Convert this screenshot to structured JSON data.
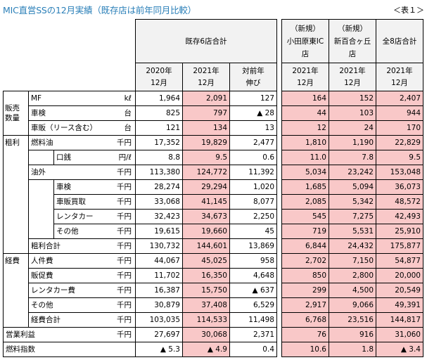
{
  "title": "MIC直営SSの12月実績（既存店は前年同月比較）",
  "tag": "＜表１＞",
  "headers": {
    "existing_group": "既存6店合計",
    "y2020": "2020年",
    "y2021": "2021年",
    "m12": "12月",
    "yoy1": "対前年",
    "yoy2": "伸び",
    "new1_a": "（新規）",
    "new1_b": "小田原東IC",
    "new1_c": "店",
    "new2_a": "（新規）",
    "new2_b": "新百合ヶ丘",
    "new2_c": "店",
    "all8": "全8店合計"
  },
  "groups": {
    "sales_qty_1": "販売",
    "sales_qty_2": "数量",
    "gross": "粗利",
    "expense": "経費",
    "op_profit": "営業利益",
    "fuel_index": "燃料指数"
  },
  "rows": {
    "mf": {
      "label": "MF",
      "unit": "kℓ",
      "v2020": "1,964",
      "v2021": "2,091",
      "yoy": "127",
      "odawara": "164",
      "shinyuri": "152",
      "total": "2,407"
    },
    "shaken": {
      "label": "車検",
      "unit": "台",
      "v2020": "825",
      "v2021": "797",
      "yoy": "▲ 28",
      "odawara": "44",
      "shinyuri": "103",
      "total": "944"
    },
    "shahan": {
      "label": "車販（リース含む）",
      "unit": "台",
      "v2020": "121",
      "v2021": "134",
      "yoy": "13",
      "odawara": "12",
      "shinyuri": "24",
      "total": "170"
    },
    "fuel": {
      "label": "燃料油",
      "unit": "千円",
      "v2020": "17,352",
      "v2021": "19,829",
      "yoy": "2,477",
      "odawara": "1,810",
      "shinyuri": "1,190",
      "total": "22,829"
    },
    "margin": {
      "label": "口銭",
      "unit": "円/ℓ",
      "v2020": "8.8",
      "v2021": "9.5",
      "yoy": "0.6",
      "odawara": "11.0",
      "shinyuri": "7.8",
      "total": "9.5"
    },
    "oilout": {
      "label": "油外",
      "unit": "千円",
      "v2020": "113,380",
      "v2021": "124,772",
      "yoy": "11,392",
      "odawara": "5,034",
      "shinyuri": "23,242",
      "total": "153,048"
    },
    "o_shaken": {
      "label": "車検",
      "unit": "千円",
      "v2020": "28,274",
      "v2021": "29,294",
      "yoy": "1,020",
      "odawara": "1,685",
      "shinyuri": "5,094",
      "total": "36,073"
    },
    "o_buy": {
      "label": "車販買取",
      "unit": "千円",
      "v2020": "33,068",
      "v2021": "41,145",
      "yoy": "8,077",
      "odawara": "2,085",
      "shinyuri": "5,342",
      "total": "48,572"
    },
    "o_rent": {
      "label": "レンタカー",
      "unit": "千円",
      "v2020": "32,423",
      "v2021": "34,673",
      "yoy": "2,250",
      "odawara": "545",
      "shinyuri": "7,275",
      "total": "42,493"
    },
    "o_other": {
      "label": "その他",
      "unit": "千円",
      "v2020": "19,615",
      "v2021": "19,660",
      "yoy": "45",
      "odawara": "719",
      "shinyuri": "5,531",
      "total": "25,910"
    },
    "gross_sum": {
      "label": "粗利合計",
      "unit": "千円",
      "v2020": "130,732",
      "v2021": "144,601",
      "yoy": "13,869",
      "odawara": "6,844",
      "shinyuri": "24,432",
      "total": "175,877"
    },
    "e_person": {
      "label": "人件費",
      "unit": "千円",
      "v2020": "44,067",
      "v2021": "45,025",
      "yoy": "958",
      "odawara": "2,702",
      "shinyuri": "7,150",
      "total": "54,877"
    },
    "e_promo": {
      "label": "販促費",
      "unit": "千円",
      "v2020": "11,702",
      "v2021": "16,350",
      "yoy": "4,648",
      "odawara": "850",
      "shinyuri": "2,800",
      "total": "20,000"
    },
    "e_rent": {
      "label": "レンタカー費",
      "unit": "千円",
      "v2020": "16,387",
      "v2021": "15,750",
      "yoy": "▲ 637",
      "odawara": "299",
      "shinyuri": "4,500",
      "total": "20,549"
    },
    "e_other": {
      "label": "その他",
      "unit": "千円",
      "v2020": "30,879",
      "v2021": "37,408",
      "yoy": "6,529",
      "odawara": "2,917",
      "shinyuri": "9,066",
      "total": "49,391"
    },
    "e_sum": {
      "label": "経費合計",
      "unit": "千円",
      "v2020": "103,035",
      "v2021": "114,533",
      "yoy": "11,498",
      "odawara": "6,768",
      "shinyuri": "23,516",
      "total": "144,817"
    },
    "op": {
      "label": "営業利益",
      "unit": "千円",
      "v2020": "27,697",
      "v2021": "30,068",
      "yoy": "2,371",
      "odawara": "76",
      "shinyuri": "916",
      "total": "31,060"
    },
    "fi": {
      "label": "燃料指数",
      "unit": "",
      "v2020": "▲ 5.3",
      "v2021": "▲ 4.9",
      "yoy": "0.4",
      "odawara": "10.6",
      "shinyuri": "1.8",
      "total": "▲ 3.4"
    }
  },
  "colors": {
    "highlight": "#f9c8c8",
    "title": "#2a7fb8",
    "header_bg": "#f2f2f2"
  }
}
